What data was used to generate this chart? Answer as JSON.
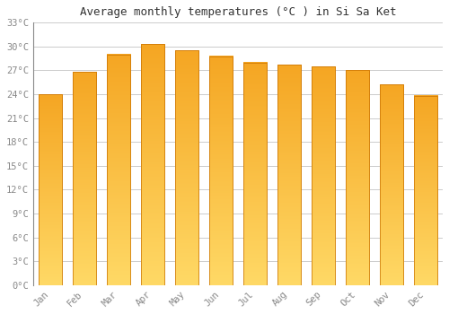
{
  "title": "Average monthly temperatures (°C ) in Si Sa Ket",
  "months": [
    "Jan",
    "Feb",
    "Mar",
    "Apr",
    "May",
    "Jun",
    "Jul",
    "Aug",
    "Sep",
    "Oct",
    "Nov",
    "Dec"
  ],
  "values": [
    24.0,
    26.8,
    29.0,
    30.3,
    29.5,
    28.8,
    28.0,
    27.7,
    27.5,
    27.0,
    25.2,
    23.8
  ],
  "bar_color_top": "#F5A623",
  "bar_color_bottom": "#FFD966",
  "bar_edge_color": "#C87000",
  "ylim": [
    0,
    33
  ],
  "yticks": [
    0,
    3,
    6,
    9,
    12,
    15,
    18,
    21,
    24,
    27,
    30,
    33
  ],
  "ytick_labels": [
    "0°C",
    "3°C",
    "6°C",
    "9°C",
    "12°C",
    "15°C",
    "18°C",
    "21°C",
    "24°C",
    "27°C",
    "30°C",
    "33°C"
  ],
  "background_color": "#ffffff",
  "grid_color": "#cccccc",
  "tick_label_color": "#888888",
  "title_color": "#333333",
  "font_family": "monospace",
  "bar_width": 0.7
}
